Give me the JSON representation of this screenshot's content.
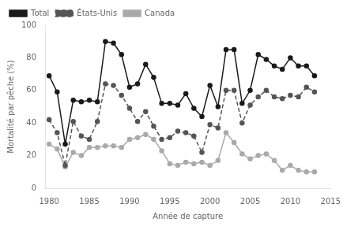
{
  "chart_data": {
    "type": "line",
    "xlabel": "Année de capture",
    "ylabel": "Mortalité par pêche (%)",
    "x": [
      1980,
      1981,
      1982,
      1983,
      1984,
      1985,
      1986,
      1987,
      1988,
      1989,
      1990,
      1991,
      1992,
      1993,
      1994,
      1995,
      1996,
      1997,
      1998,
      1999,
      2000,
      2001,
      2002,
      2003,
      2004,
      2005,
      2006,
      2007,
      2008,
      2009,
      2010,
      2011,
      2012,
      2013
    ],
    "xlim": [
      1979.5,
      2015
    ],
    "xticks": [
      1980,
      1985,
      1990,
      1995,
      2000,
      2005,
      2010,
      2015
    ],
    "ylim": [
      0,
      100
    ],
    "yticks": [
      0,
      20,
      40,
      60,
      80,
      100
    ],
    "grid": false,
    "legend": "upper left",
    "series": [
      {
        "name": "Total",
        "color": "#1a1a1a",
        "line_style": "solid",
        "marker": "circle",
        "values": [
          69,
          59,
          27,
          54,
          53,
          54,
          53,
          90,
          89,
          82,
          62,
          64,
          76,
          68,
          52,
          52,
          51,
          58,
          49,
          44,
          63,
          50,
          85,
          85,
          52,
          60,
          82,
          79,
          75,
          73,
          80,
          75,
          75,
          69
        ]
      },
      {
        "name": "États-Unis",
        "color": "#555555",
        "line_style": "dashed",
        "marker": "circle",
        "values": [
          42,
          34,
          14,
          41,
          32,
          30,
          41,
          64,
          63,
          57,
          49,
          41,
          47,
          38,
          30,
          31,
          35,
          34,
          32,
          22,
          39,
          37,
          60,
          60,
          40,
          51,
          56,
          60,
          56,
          55,
          57,
          56,
          62,
          59
        ]
      },
      {
        "name": "Canada",
        "color": "#aaaaaa",
        "line_style": "solid",
        "marker": "circle",
        "values": [
          27,
          24,
          13,
          22,
          20,
          25,
          25,
          26,
          26,
          25,
          30,
          31,
          33,
          30,
          23,
          15,
          14,
          16,
          15,
          16,
          14,
          17,
          34,
          28,
          21,
          18,
          20,
          21,
          17,
          11,
          14,
          11,
          10,
          10
        ]
      }
    ]
  }
}
